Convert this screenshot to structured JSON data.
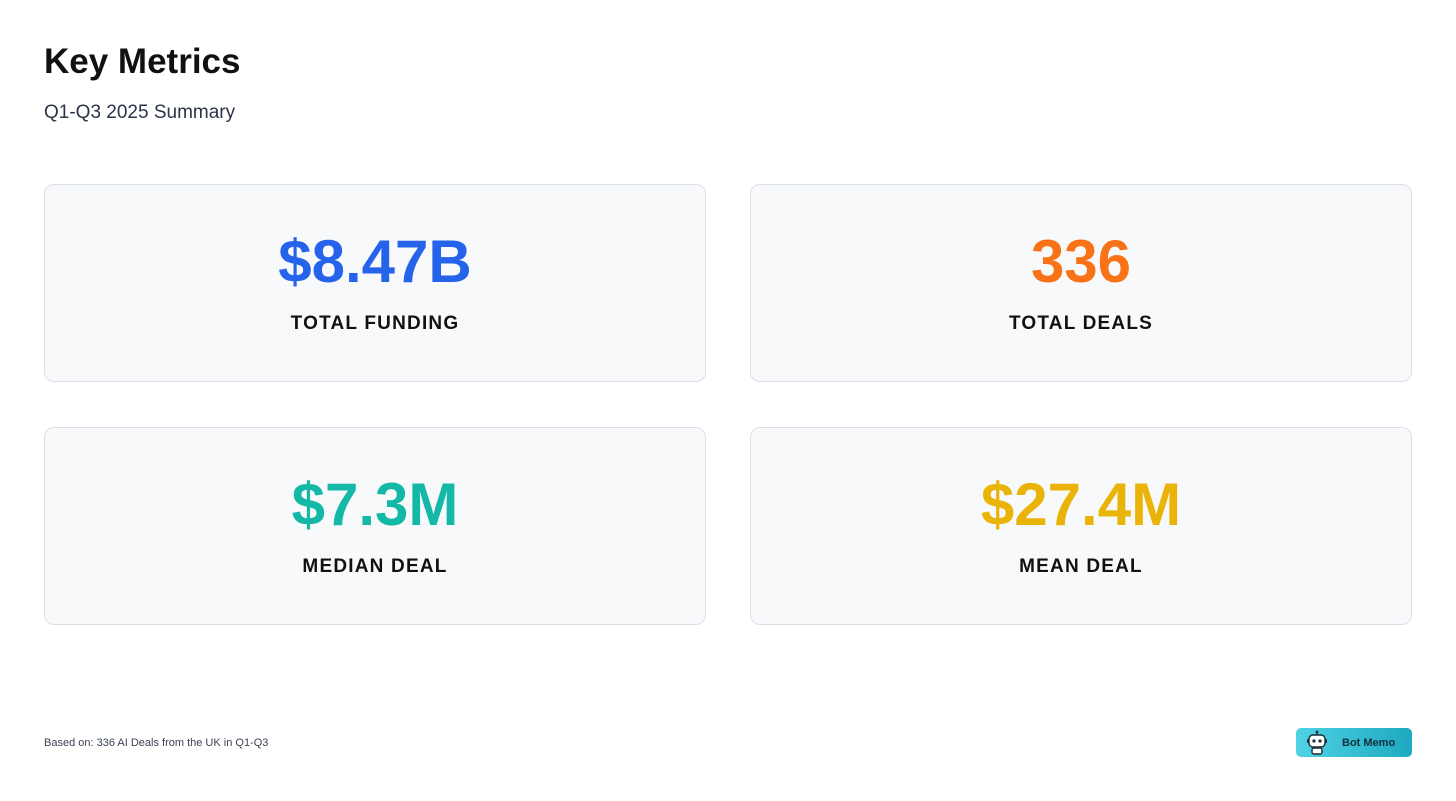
{
  "header": {
    "title": "Key Metrics",
    "subtitle": "Q1-Q3 2025 Summary"
  },
  "metrics": [
    {
      "value": "$8.47B",
      "label": "TOTAL FUNDING",
      "color": "#2563eb"
    },
    {
      "value": "336",
      "label": "TOTAL DEALS",
      "color": "#f97316"
    },
    {
      "value": "$7.3M",
      "label": "MEDIAN DEAL",
      "color": "#14b8a6"
    },
    {
      "value": "$27.4M",
      "label": "MEAN DEAL",
      "color": "#eab308"
    }
  ],
  "footer": {
    "note": "Based on: 336 AI Deals from the UK in Q1-Q3",
    "brand_label": "Bot Memo",
    "brand_icon": "robot-icon"
  }
}
